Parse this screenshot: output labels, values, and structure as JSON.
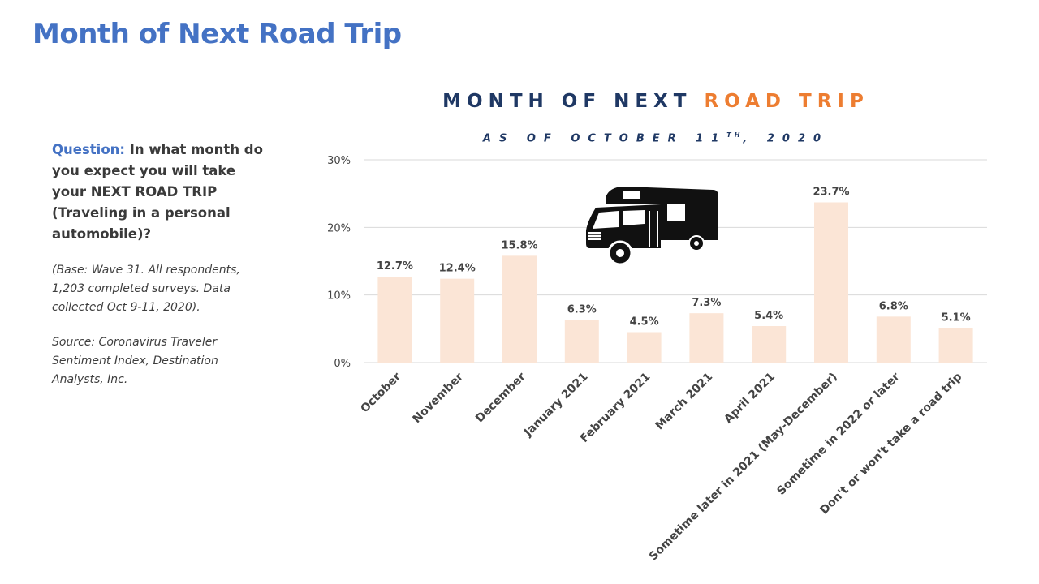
{
  "slide_title": "Month of Next Road Trip",
  "side_panel": {
    "question_label": "Question:",
    "question_text": "In what month do you expect you will take your NEXT ROAD TRIP (Traveling in a personal automobile)?",
    "base_note": "(Base: Wave 31. All respondents, 1,203 completed surveys. Data collected Oct 9-11, 2020).",
    "source_note": "Source: Coronavirus Traveler Sentiment Index, Destination Analysts, Inc."
  },
  "icons": {
    "rv": "rv-camper-icon"
  },
  "colors": {
    "bar": "#fbe5d6",
    "accent": "#ed7d31",
    "title_navy": "#1f3864",
    "heading_blue": "#4472c4",
    "grid": "#d9d9d9"
  },
  "chart_data": {
    "type": "bar",
    "title_main": "MONTH OF NEXT ",
    "title_accent": "ROAD TRIP",
    "subtitle_pre": "AS OF OCTOBER 11",
    "subtitle_sup": "TH",
    "subtitle_post": ", 2020",
    "categories": [
      "October",
      "November",
      "December",
      "January 2021",
      "February 2021",
      "March 2021",
      "April 2021",
      "Sometime later in 2021 (May-December)",
      "Sometime in 2022 or later",
      "Don't or won't take a road trip"
    ],
    "values": [
      12.7,
      12.4,
      15.8,
      6.3,
      4.5,
      7.3,
      5.4,
      23.7,
      6.8,
      5.1
    ],
    "data_labels": [
      "12.7%",
      "12.4%",
      "15.8%",
      "6.3%",
      "4.5%",
      "7.3%",
      "5.4%",
      "23.7%",
      "6.8%",
      "5.1%"
    ],
    "yticks": [
      0,
      10,
      20,
      30
    ],
    "ytick_labels": [
      "0%",
      "10%",
      "20%",
      "30%"
    ],
    "ylim": [
      0,
      30
    ],
    "grid": true
  }
}
